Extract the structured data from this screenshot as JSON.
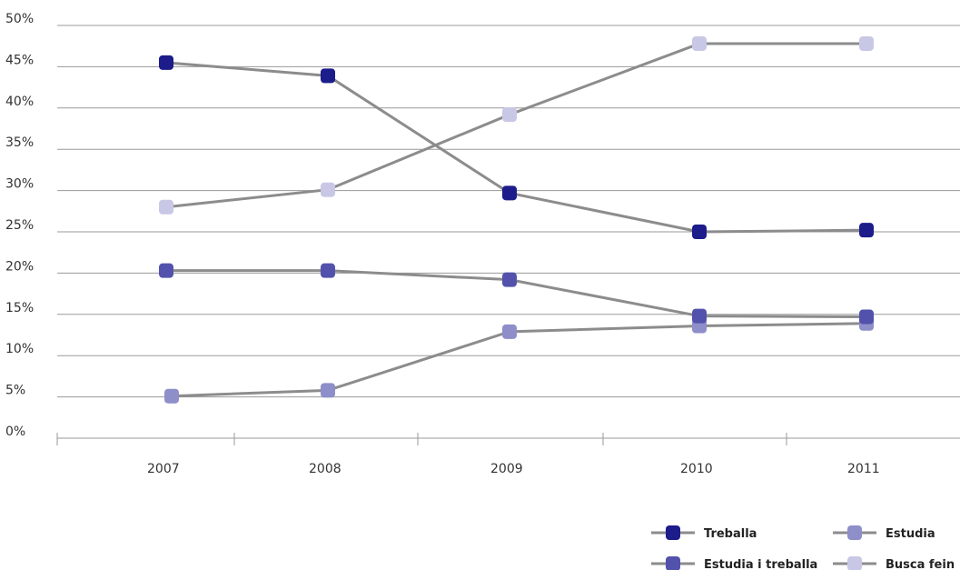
{
  "chart_data": {
    "type": "line",
    "title": "",
    "xlabel": "",
    "ylabel": "",
    "categories": [
      "2007",
      "2008",
      "2009",
      "2010",
      "2011"
    ],
    "ylim": [
      0,
      50
    ],
    "ytick_labels": [
      "0%",
      "5%",
      "10%",
      "15%",
      "20%",
      "25%",
      "30%",
      "35%",
      "40%",
      "45%",
      "50%"
    ],
    "grid": true,
    "legend_position": "bottom-right",
    "line_color": "#8c8c8c",
    "series": [
      {
        "name": "Treballa",
        "color": "#1c1c8a",
        "values": [
          45.5,
          43.9,
          29.7,
          25.0,
          25.2
        ]
      },
      {
        "name": "Estudia",
        "color": "#8e8ec9",
        "values": [
          5.1,
          5.8,
          12.9,
          13.6,
          13.9
        ]
      },
      {
        "name": "Estudia i treballa",
        "color": "#5252ac",
        "values": [
          20.3,
          20.3,
          19.2,
          14.8,
          14.7
        ]
      },
      {
        "name": "Busca fein",
        "color": "#c8c8e6",
        "values": [
          28.0,
          30.1,
          39.2,
          47.8,
          47.8
        ]
      }
    ]
  }
}
